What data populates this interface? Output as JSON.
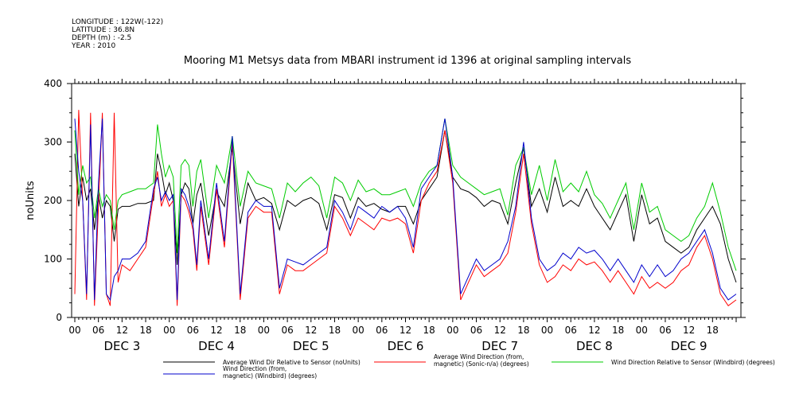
{
  "meta": [
    "LONGITUDE : 122W(-122)",
    "LATITUDE : 36.8N",
    "DEPTH (m) : -2.5",
    "YEAR : 2010"
  ],
  "chart_data": {
    "type": "line",
    "title": "Mooring M1 Metsys data from MBARI instrument id 1396 at original sampling intervals",
    "ylabel": "noUnits",
    "ylim": [
      0,
      400
    ],
    "yticks": [
      0,
      100,
      200,
      300,
      400
    ],
    "xlim": [
      0,
      168
    ],
    "x_unit": "hours from Dec 3 00:00",
    "hour_labels": [
      "00",
      "06",
      "12",
      "18"
    ],
    "day_labels": [
      "DEC 3",
      "DEC 4",
      "DEC 5",
      "DEC 6",
      "DEC 7",
      "DEC 8",
      "DEC 9"
    ],
    "series": [
      {
        "name": "Average Wind Dir Relative to Sensor (noUnits)",
        "color": "#000000",
        "x": [
          0,
          1,
          2,
          3,
          4,
          5,
          6,
          7,
          8,
          9,
          10,
          11,
          12,
          14,
          16,
          18,
          20,
          21,
          22,
          23,
          24,
          25,
          26,
          27,
          28,
          29,
          30,
          31,
          32,
          34,
          36,
          38,
          40,
          42,
          44,
          46,
          48,
          50,
          52,
          54,
          56,
          58,
          60,
          62,
          64,
          66,
          68,
          70,
          72,
          74,
          76,
          78,
          80,
          82,
          84,
          86,
          88,
          90,
          92,
          94,
          96,
          98,
          100,
          102,
          104,
          106,
          108,
          110,
          112,
          114,
          116,
          118,
          120,
          122,
          124,
          126,
          128,
          130,
          132,
          134,
          136,
          138,
          140,
          142,
          144,
          146,
          148,
          150,
          152,
          154,
          156,
          158,
          160,
          162,
          164,
          166,
          168
        ],
        "y": [
          280,
          190,
          240,
          200,
          220,
          150,
          210,
          170,
          200,
          190,
          130,
          185,
          190,
          190,
          195,
          195,
          200,
          280,
          250,
          210,
          230,
          200,
          90,
          210,
          230,
          220,
          160,
          210,
          230,
          140,
          215,
          190,
          290,
          160,
          230,
          200,
          205,
          195,
          150,
          200,
          190,
          200,
          205,
          195,
          150,
          210,
          205,
          170,
          205,
          190,
          195,
          185,
          180,
          190,
          190,
          160,
          200,
          220,
          240,
          320,
          240,
          220,
          215,
          205,
          190,
          200,
          195,
          160,
          230,
          290,
          190,
          220,
          180,
          240,
          190,
          200,
          190,
          220,
          190,
          170,
          150,
          180,
          210,
          130,
          210,
          160,
          170,
          130,
          120,
          110,
          120,
          150,
          170,
          190,
          160,
          100,
          60
        ]
      },
      {
        "name": "Average Wind Direction (from, magnetic) (Sonic-n/a) (degrees)",
        "color": "#ff0000",
        "x": [
          0,
          1,
          2,
          3,
          4,
          5,
          6,
          7,
          8,
          9,
          10,
          11,
          12,
          14,
          16,
          18,
          20,
          21,
          22,
          23,
          24,
          25,
          26,
          27,
          28,
          29,
          30,
          31,
          32,
          34,
          36,
          38,
          40,
          42,
          44,
          46,
          48,
          50,
          52,
          54,
          56,
          58,
          60,
          62,
          64,
          66,
          68,
          70,
          72,
          74,
          76,
          78,
          80,
          82,
          84,
          86,
          88,
          90,
          92,
          94,
          96,
          98,
          100,
          102,
          104,
          106,
          108,
          110,
          112,
          114,
          116,
          118,
          120,
          122,
          124,
          126,
          128,
          130,
          132,
          134,
          136,
          138,
          140,
          142,
          144,
          146,
          148,
          150,
          152,
          154,
          156,
          158,
          160,
          162,
          164,
          166,
          168
        ],
        "y": [
          40,
          355,
          200,
          30,
          350,
          20,
          190,
          350,
          40,
          20,
          350,
          60,
          90,
          80,
          100,
          120,
          210,
          250,
          190,
          210,
          190,
          200,
          20,
          210,
          200,
          180,
          150,
          80,
          190,
          90,
          220,
          120,
          300,
          30,
          170,
          190,
          180,
          180,
          40,
          90,
          80,
          80,
          90,
          100,
          110,
          190,
          170,
          140,
          170,
          160,
          150,
          170,
          165,
          170,
          160,
          110,
          200,
          230,
          250,
          320,
          230,
          30,
          60,
          90,
          70,
          80,
          90,
          110,
          180,
          280,
          160,
          90,
          60,
          70,
          90,
          80,
          100,
          90,
          95,
          80,
          60,
          80,
          60,
          40,
          70,
          50,
          60,
          50,
          60,
          80,
          90,
          120,
          140,
          100,
          40,
          20,
          30
        ]
      },
      {
        "name": "Wind Direction Relative to Sensor (Windbird) (degrees)",
        "color": "#00cc00",
        "x": [
          0,
          1,
          2,
          3,
          4,
          5,
          6,
          7,
          8,
          9,
          10,
          11,
          12,
          14,
          16,
          18,
          20,
          21,
          22,
          23,
          24,
          25,
          26,
          27,
          28,
          29,
          30,
          31,
          32,
          34,
          36,
          38,
          40,
          42,
          44,
          46,
          48,
          50,
          52,
          54,
          56,
          58,
          60,
          62,
          64,
          66,
          68,
          70,
          72,
          74,
          76,
          78,
          80,
          82,
          84,
          86,
          88,
          90,
          92,
          94,
          96,
          98,
          100,
          102,
          104,
          106,
          108,
          110,
          112,
          114,
          116,
          118,
          120,
          122,
          124,
          126,
          128,
          130,
          132,
          134,
          136,
          138,
          140,
          142,
          144,
          146,
          148,
          150,
          152,
          154,
          156,
          158,
          160,
          162,
          164,
          166,
          168
        ],
        "y": [
          320,
          210,
          260,
          230,
          240,
          170,
          220,
          190,
          210,
          200,
          150,
          200,
          210,
          215,
          220,
          220,
          230,
          330,
          280,
          240,
          260,
          240,
          110,
          260,
          270,
          260,
          190,
          250,
          270,
          170,
          260,
          230,
          310,
          190,
          250,
          230,
          225,
          220,
          170,
          230,
          215,
          230,
          240,
          225,
          170,
          240,
          230,
          200,
          235,
          215,
          220,
          210,
          210,
          215,
          220,
          190,
          230,
          250,
          260,
          340,
          260,
          240,
          230,
          220,
          210,
          215,
          220,
          175,
          260,
          290,
          210,
          260,
          200,
          270,
          215,
          230,
          215,
          250,
          210,
          195,
          170,
          200,
          230,
          150,
          230,
          180,
          190,
          150,
          140,
          130,
          140,
          170,
          190,
          230,
          180,
          120,
          80
        ]
      },
      {
        "name": "Wind Direction (from, magnetic) (Windbird) (degrees)",
        "color": "#0000cc",
        "x": [
          0,
          1,
          2,
          3,
          4,
          5,
          6,
          7,
          8,
          9,
          10,
          11,
          12,
          14,
          16,
          18,
          20,
          21,
          22,
          23,
          24,
          25,
          26,
          27,
          28,
          29,
          30,
          31,
          32,
          34,
          36,
          38,
          40,
          42,
          44,
          46,
          48,
          50,
          52,
          54,
          56,
          58,
          60,
          62,
          64,
          66,
          68,
          70,
          72,
          74,
          76,
          78,
          80,
          82,
          84,
          86,
          88,
          90,
          92,
          94,
          96,
          98,
          100,
          102,
          104,
          106,
          108,
          110,
          112,
          114,
          116,
          118,
          120,
          122,
          124,
          126,
          128,
          130,
          132,
          134,
          136,
          138,
          140,
          142,
          144,
          146,
          148,
          150,
          152,
          154,
          156,
          158,
          160,
          162,
          164,
          166,
          168
        ],
        "y": [
          340,
          250,
          200,
          40,
          330,
          30,
          230,
          340,
          40,
          30,
          70,
          80,
          100,
          100,
          110,
          130,
          220,
          240,
          200,
          215,
          200,
          210,
          30,
          220,
          210,
          190,
          160,
          90,
          200,
          100,
          230,
          130,
          310,
          40,
          180,
          200,
          190,
          190,
          50,
          100,
          95,
          90,
          100,
          110,
          120,
          200,
          180,
          150,
          190,
          180,
          170,
          190,
          180,
          190,
          170,
          120,
          220,
          240,
          260,
          340,
          240,
          40,
          70,
          100,
          80,
          90,
          100,
          130,
          190,
          300,
          170,
          100,
          80,
          90,
          110,
          100,
          120,
          110,
          115,
          100,
          80,
          100,
          80,
          60,
          90,
          70,
          90,
          70,
          80,
          100,
          110,
          130,
          150,
          110,
          50,
          30,
          40
        ]
      }
    ],
    "legend": [
      {
        "lines": [
          "Average Wind Dir Relative to Sensor (noUnits)"
        ],
        "color": "#000000"
      },
      {
        "lines": [
          "Average Wind Direction (from,",
          "magnetic) (Sonic-n/a) (degrees)"
        ],
        "color": "#ff0000"
      },
      {
        "lines": [
          "Wind Direction Relative to Sensor (Windbird) (degrees)"
        ],
        "color": "#00cc00"
      },
      {
        "lines": [
          "Wind Direction (from,",
          "magnetic) (Windbird) (degrees)"
        ],
        "color": "#0000cc"
      }
    ]
  }
}
